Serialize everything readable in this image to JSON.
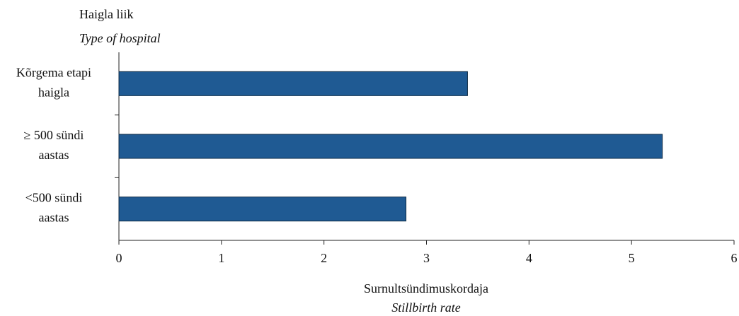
{
  "chart_data": {
    "type": "bar",
    "orientation": "horizontal",
    "y_axis_title": "Haigla liik",
    "y_axis_subtitle": "Type of hospital",
    "x_axis_title": "Surnultsündimuskordaja",
    "x_axis_subtitle": "Stillbirth rate",
    "categories": [
      "Kõrgema etapi haigla",
      "≥ 500 sündi aastas",
      "<500 sündi aastas"
    ],
    "values": [
      3.4,
      5.3,
      2.8
    ],
    "color": "#1f5a93",
    "xlim": [
      0,
      6
    ],
    "xticks": [
      0,
      1,
      2,
      3,
      4,
      5,
      6
    ],
    "grid": false
  }
}
